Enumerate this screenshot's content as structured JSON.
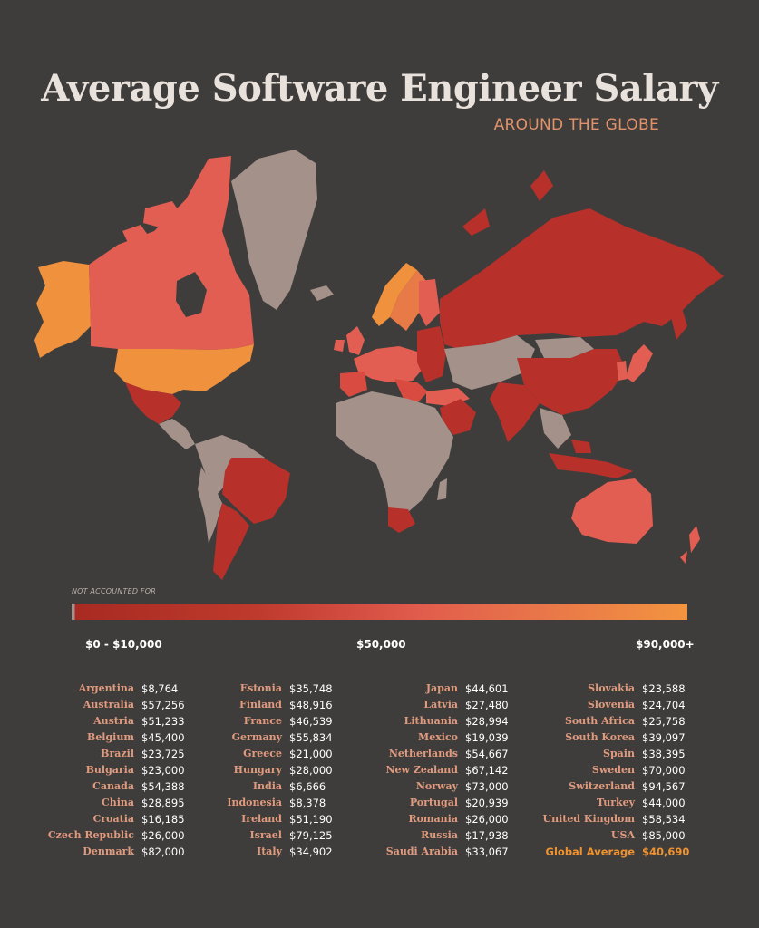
{
  "title": "Average Software Engineer Salary",
  "subtitle": "AROUND THE GLOBE",
  "legend": {
    "note": "NOT ACCOUNTED FOR",
    "min_label": "$0 - $10,000",
    "mid_label": "$50,000",
    "max_label": "$90,000+"
  },
  "colors": {
    "background": "#3f3d3c",
    "not_accounted": "#a3918a",
    "low": "#a82a22",
    "mid": "#e05a4c",
    "high": "#f29440"
  },
  "chart_data": {
    "type": "table",
    "title": "Average Software Engineer Salary",
    "subtitle": "AROUND THE GLOBE",
    "countries": [
      {
        "name": "Argentina",
        "salary": "$8,764"
      },
      {
        "name": "Australia",
        "salary": "$57,256"
      },
      {
        "name": "Austria",
        "salary": "$51,233"
      },
      {
        "name": "Belgium",
        "salary": "$45,400"
      },
      {
        "name": "Brazil",
        "salary": "$23,725"
      },
      {
        "name": "Bulgaria",
        "salary": "$23,000"
      },
      {
        "name": "Canada",
        "salary": "$54,388"
      },
      {
        "name": "China",
        "salary": "$28,895"
      },
      {
        "name": "Croatia",
        "salary": "$16,185"
      },
      {
        "name": "Czech Republic",
        "salary": "$26,000"
      },
      {
        "name": "Denmark",
        "salary": "$82,000"
      },
      {
        "name": "Estonia",
        "salary": "$35,748"
      },
      {
        "name": "Finland",
        "salary": "$48,916"
      },
      {
        "name": "France",
        "salary": "$46,539"
      },
      {
        "name": "Germany",
        "salary": "$55,834"
      },
      {
        "name": "Greece",
        "salary": "$21,000"
      },
      {
        "name": "Hungary",
        "salary": "$28,000"
      },
      {
        "name": "India",
        "salary": "$6,666"
      },
      {
        "name": "Indonesia",
        "salary": "$8,378"
      },
      {
        "name": "Ireland",
        "salary": "$51,190"
      },
      {
        "name": "Israel",
        "salary": "$79,125"
      },
      {
        "name": "Italy",
        "salary": "$34,902"
      },
      {
        "name": "Japan",
        "salary": "$44,601"
      },
      {
        "name": "Latvia",
        "salary": "$27,480"
      },
      {
        "name": "Lithuania",
        "salary": "$28,994"
      },
      {
        "name": "Mexico",
        "salary": "$19,039"
      },
      {
        "name": "Netherlands",
        "salary": "$54,667"
      },
      {
        "name": "New Zealand",
        "salary": "$67,142"
      },
      {
        "name": "Norway",
        "salary": "$73,000"
      },
      {
        "name": "Portugal",
        "salary": "$20,939"
      },
      {
        "name": "Romania",
        "salary": "$26,000"
      },
      {
        "name": "Russia",
        "salary": "$17,938"
      },
      {
        "name": "Saudi Arabia",
        "salary": "$33,067"
      },
      {
        "name": "Slovakia",
        "salary": "$23,588"
      },
      {
        "name": "Slovenia",
        "salary": "$24,704"
      },
      {
        "name": "South Africa",
        "salary": "$25,758"
      },
      {
        "name": "South Korea",
        "salary": "$39,097"
      },
      {
        "name": "Spain",
        "salary": "$38,395"
      },
      {
        "name": "Sweden",
        "salary": "$70,000"
      },
      {
        "name": "Switzerland",
        "salary": "$94,567"
      },
      {
        "name": "Turkey",
        "salary": "$44,000"
      },
      {
        "name": "United Kingdom",
        "salary": "$58,534"
      },
      {
        "name": "USA",
        "salary": "$85,000"
      }
    ],
    "global_average": {
      "label": "Global Average",
      "salary": "$40,690"
    }
  }
}
